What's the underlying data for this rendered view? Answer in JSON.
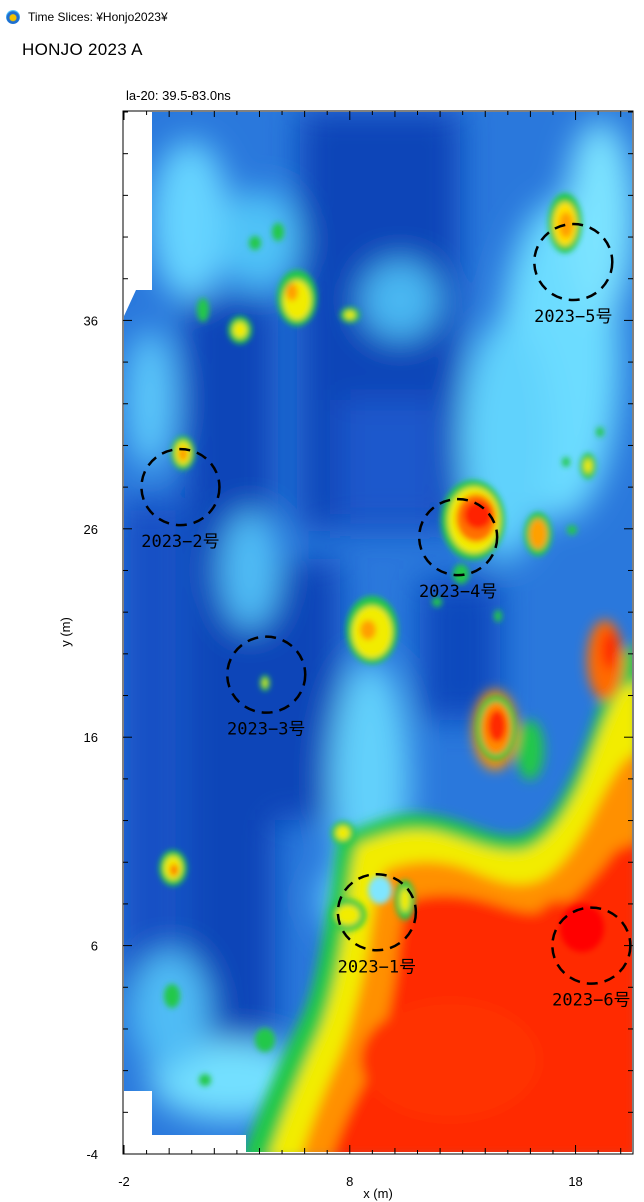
{
  "window": {
    "icon": "app-globe-icon",
    "title": "Time Slices:   ¥Honjo2023¥"
  },
  "page_title": "HONJO 2023  A",
  "slice_label": "la-20:  39.5-83.0ns",
  "chart_data": {
    "type": "heatmap",
    "title": "",
    "xlabel": "x (m)",
    "ylabel": "y (m)",
    "xlim": [
      -2,
      20.5
    ],
    "ylim": [
      -4,
      46
    ],
    "x_ticks": [
      -2,
      8,
      18
    ],
    "y_ticks": [
      -4,
      6,
      16,
      26,
      36
    ],
    "colormap": [
      "#ff0000",
      "#ff8c00",
      "#ffff00",
      "#00cc33",
      "#66e6ff",
      "#2f7fe0",
      "#0b3fb5"
    ],
    "annotations": [
      {
        "label": "2023−1号",
        "x": 9.2,
        "y": 7.6
      },
      {
        "label": "2023−2号",
        "x": 0.5,
        "y": 28.0
      },
      {
        "label": "2023−3号",
        "x": 4.3,
        "y": 19.0
      },
      {
        "label": "2023−4号",
        "x": 12.8,
        "y": 25.6
      },
      {
        "label": "2023−5号",
        "x": 17.9,
        "y": 38.8
      },
      {
        "label": "2023−6号",
        "x": 18.7,
        "y": 6.0
      }
    ]
  }
}
